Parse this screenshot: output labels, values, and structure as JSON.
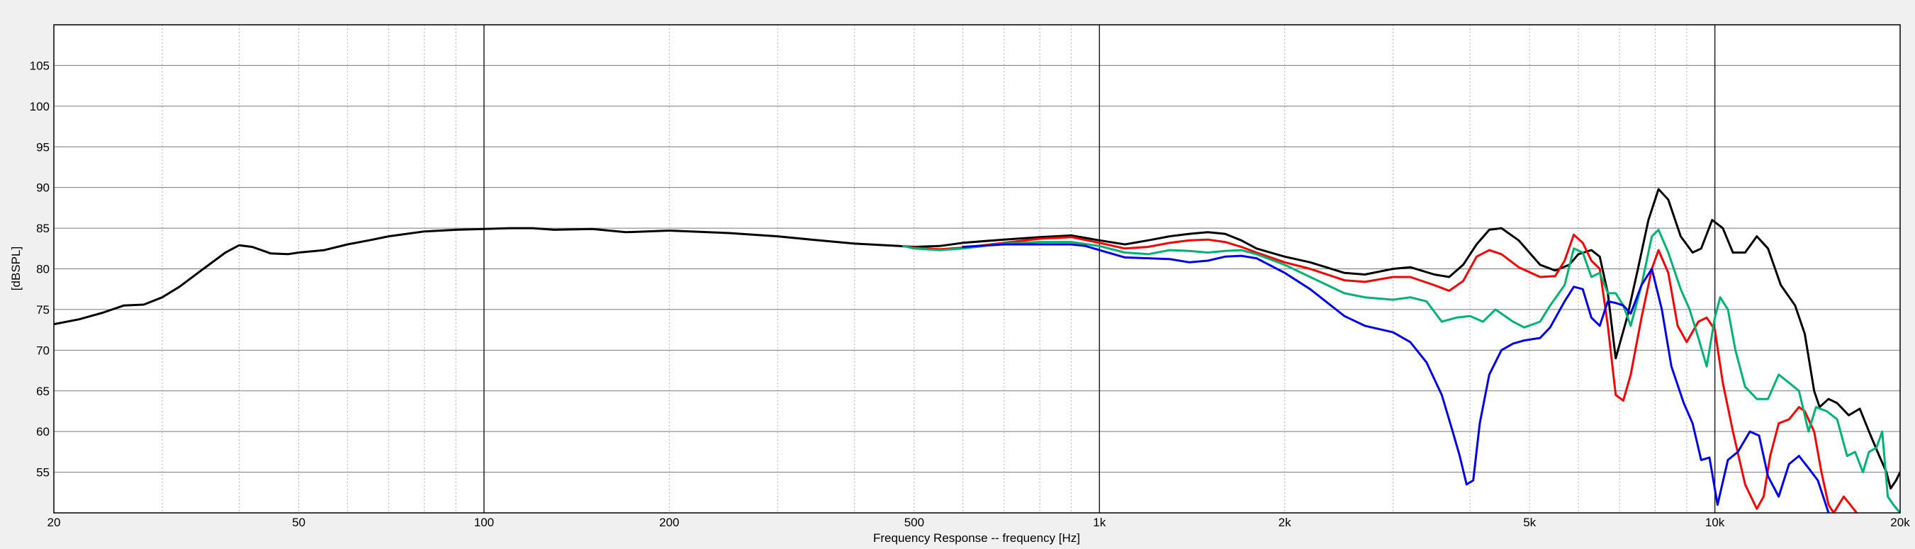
{
  "chart_data": {
    "type": "line",
    "xlabel": "Frequency Response -- frequency [Hz]",
    "ylabel": "[dBSPL]",
    "x_scale": "log",
    "xlim": [
      20,
      20000
    ],
    "ylim": [
      50,
      110
    ],
    "grid": true,
    "x_ticks": [
      20,
      50,
      100,
      200,
      500,
      1000,
      2000,
      5000,
      10000,
      20000
    ],
    "x_tick_labels": [
      "20",
      "50",
      "100",
      "200",
      "500",
      "1k",
      "2k",
      "5k",
      "10k",
      "20k"
    ],
    "y_ticks": [
      55,
      60,
      65,
      70,
      75,
      80,
      85,
      90,
      95,
      100,
      105
    ],
    "y_tick_labels": [
      "55",
      "60",
      "65",
      "70",
      "75",
      "80",
      "85",
      "90",
      "95",
      "100",
      "105"
    ],
    "series": [
      {
        "color": "#000000",
        "points": [
          [
            20,
            73.2
          ],
          [
            22,
            73.8
          ],
          [
            24,
            74.6
          ],
          [
            26,
            75.5
          ],
          [
            28,
            75.6
          ],
          [
            30,
            76.5
          ],
          [
            32,
            77.8
          ],
          [
            35,
            80
          ],
          [
            38,
            82
          ],
          [
            40,
            82.9
          ],
          [
            42,
            82.7
          ],
          [
            45,
            81.9
          ],
          [
            48,
            81.8
          ],
          [
            50,
            82
          ],
          [
            55,
            82.3
          ],
          [
            60,
            83
          ],
          [
            65,
            83.5
          ],
          [
            70,
            84
          ],
          [
            80,
            84.6
          ],
          [
            90,
            84.8
          ],
          [
            100,
            84.9
          ],
          [
            110,
            85
          ],
          [
            120,
            85
          ],
          [
            130,
            84.8
          ],
          [
            150,
            84.9
          ],
          [
            170,
            84.5
          ],
          [
            200,
            84.7
          ],
          [
            250,
            84.4
          ],
          [
            300,
            84
          ],
          [
            350,
            83.5
          ],
          [
            400,
            83.1
          ],
          [
            450,
            82.9
          ],
          [
            500,
            82.7
          ],
          [
            550,
            82.8
          ],
          [
            600,
            83.2
          ],
          [
            700,
            83.6
          ],
          [
            800,
            83.9
          ],
          [
            900,
            84.1
          ],
          [
            1000,
            83.5
          ],
          [
            1100,
            83
          ],
          [
            1200,
            83.5
          ],
          [
            1300,
            84
          ],
          [
            1400,
            84.3
          ],
          [
            1500,
            84.5
          ],
          [
            1600,
            84.3
          ],
          [
            1700,
            83.5
          ],
          [
            1800,
            82.5
          ],
          [
            2000,
            81.5
          ],
          [
            2200,
            80.8
          ],
          [
            2500,
            79.5
          ],
          [
            2700,
            79.3
          ],
          [
            3000,
            80
          ],
          [
            3200,
            80.2
          ],
          [
            3500,
            79.3
          ],
          [
            3700,
            79
          ],
          [
            3900,
            80.5
          ],
          [
            4100,
            83
          ],
          [
            4300,
            84.8
          ],
          [
            4500,
            85
          ],
          [
            4800,
            83.5
          ],
          [
            5200,
            80.5
          ],
          [
            5500,
            79.8
          ],
          [
            5800,
            80.5
          ],
          [
            6000,
            81.8
          ],
          [
            6300,
            82.3
          ],
          [
            6500,
            81.5
          ],
          [
            6700,
            77
          ],
          [
            6900,
            69
          ],
          [
            7200,
            74
          ],
          [
            7500,
            80
          ],
          [
            7800,
            86
          ],
          [
            8100,
            89.8
          ],
          [
            8400,
            88.5
          ],
          [
            8800,
            84
          ],
          [
            9200,
            82
          ],
          [
            9500,
            82.5
          ],
          [
            9900,
            86
          ],
          [
            10300,
            85
          ],
          [
            10700,
            82
          ],
          [
            11200,
            82
          ],
          [
            11700,
            84
          ],
          [
            12200,
            82.5
          ],
          [
            12800,
            78
          ],
          [
            13500,
            75.5
          ],
          [
            14000,
            72
          ],
          [
            14500,
            65
          ],
          [
            14800,
            63
          ],
          [
            15300,
            64
          ],
          [
            15800,
            63.5
          ],
          [
            16500,
            62
          ],
          [
            17200,
            62.8
          ],
          [
            17800,
            60
          ],
          [
            18500,
            57
          ],
          [
            19000,
            55
          ],
          [
            19300,
            53
          ],
          [
            19700,
            54
          ],
          [
            20000,
            55
          ]
        ]
      },
      {
        "color": "#ff0000",
        "points": [
          [
            480,
            82.8
          ],
          [
            500,
            82.6
          ],
          [
            550,
            82.4
          ],
          [
            600,
            82.6
          ],
          [
            700,
            83.2
          ],
          [
            800,
            83.7
          ],
          [
            900,
            83.9
          ],
          [
            1000,
            83.2
          ],
          [
            1100,
            82.5
          ],
          [
            1200,
            82.7
          ],
          [
            1300,
            83.2
          ],
          [
            1400,
            83.5
          ],
          [
            1500,
            83.6
          ],
          [
            1600,
            83.3
          ],
          [
            1700,
            82.7
          ],
          [
            1800,
            82
          ],
          [
            2000,
            80.8
          ],
          [
            2200,
            80
          ],
          [
            2500,
            78.6
          ],
          [
            2700,
            78.4
          ],
          [
            3000,
            79
          ],
          [
            3200,
            79
          ],
          [
            3500,
            78
          ],
          [
            3700,
            77.3
          ],
          [
            3900,
            78.5
          ],
          [
            4100,
            81.5
          ],
          [
            4300,
            82.3
          ],
          [
            4500,
            81.8
          ],
          [
            4800,
            80.2
          ],
          [
            5200,
            79
          ],
          [
            5500,
            79.1
          ],
          [
            5700,
            81
          ],
          [
            5900,
            84.2
          ],
          [
            6100,
            83.2
          ],
          [
            6300,
            81
          ],
          [
            6500,
            80
          ],
          [
            6700,
            73
          ],
          [
            6900,
            64.5
          ],
          [
            7100,
            63.8
          ],
          [
            7300,
            67
          ],
          [
            7600,
            74
          ],
          [
            7900,
            80
          ],
          [
            8100,
            82.3
          ],
          [
            8400,
            79.5
          ],
          [
            8700,
            73
          ],
          [
            9000,
            71
          ],
          [
            9400,
            73.5
          ],
          [
            9700,
            74
          ],
          [
            10000,
            72.5
          ],
          [
            10300,
            66
          ],
          [
            10700,
            60
          ],
          [
            11200,
            53.5
          ],
          [
            11700,
            50.5
          ],
          [
            12000,
            52
          ],
          [
            12300,
            57
          ],
          [
            12700,
            61
          ],
          [
            13200,
            61.5
          ],
          [
            13700,
            63
          ],
          [
            14000,
            62.5
          ],
          [
            14500,
            60
          ],
          [
            14900,
            55
          ],
          [
            15300,
            51
          ],
          [
            15600,
            50
          ],
          [
            16200,
            52
          ],
          [
            16600,
            51
          ],
          [
            17000,
            50
          ]
        ]
      },
      {
        "color": "#00b373",
        "points": [
          [
            480,
            82.8
          ],
          [
            500,
            82.5
          ],
          [
            550,
            82.3
          ],
          [
            600,
            82.5
          ],
          [
            700,
            83.1
          ],
          [
            800,
            83.3
          ],
          [
            900,
            83.3
          ],
          [
            1000,
            82.8
          ],
          [
            1100,
            82
          ],
          [
            1200,
            81.8
          ],
          [
            1300,
            82.3
          ],
          [
            1400,
            82.2
          ],
          [
            1500,
            82
          ],
          [
            1600,
            82.2
          ],
          [
            1700,
            82.3
          ],
          [
            1800,
            81.8
          ],
          [
            2000,
            80.5
          ],
          [
            2200,
            79
          ],
          [
            2500,
            77
          ],
          [
            2700,
            76.5
          ],
          [
            3000,
            76.2
          ],
          [
            3200,
            76.5
          ],
          [
            3400,
            76
          ],
          [
            3600,
            73.5
          ],
          [
            3800,
            74
          ],
          [
            4000,
            74.2
          ],
          [
            4200,
            73.5
          ],
          [
            4400,
            75
          ],
          [
            4700,
            73.5
          ],
          [
            4900,
            72.8
          ],
          [
            5200,
            73.5
          ],
          [
            5400,
            75.5
          ],
          [
            5700,
            78
          ],
          [
            5900,
            82.5
          ],
          [
            6100,
            82
          ],
          [
            6300,
            79
          ],
          [
            6500,
            79.5
          ],
          [
            6700,
            77
          ],
          [
            6900,
            77
          ],
          [
            7100,
            75.5
          ],
          [
            7300,
            73
          ],
          [
            7600,
            78
          ],
          [
            7900,
            84
          ],
          [
            8100,
            84.8
          ],
          [
            8400,
            82
          ],
          [
            8800,
            77.5
          ],
          [
            9100,
            75
          ],
          [
            9400,
            71.5
          ],
          [
            9700,
            68
          ],
          [
            10000,
            74
          ],
          [
            10200,
            76.5
          ],
          [
            10500,
            75
          ],
          [
            10800,
            70
          ],
          [
            11200,
            65.5
          ],
          [
            11700,
            64
          ],
          [
            12200,
            64
          ],
          [
            12700,
            67
          ],
          [
            13200,
            66
          ],
          [
            13700,
            65
          ],
          [
            14200,
            60
          ],
          [
            14600,
            63
          ],
          [
            15200,
            62.5
          ],
          [
            15800,
            61.5
          ],
          [
            16400,
            57
          ],
          [
            16900,
            57.5
          ],
          [
            17400,
            55
          ],
          [
            17800,
            57.5
          ],
          [
            18300,
            58
          ],
          [
            18700,
            60
          ],
          [
            19100,
            52
          ],
          [
            19500,
            51
          ],
          [
            20000,
            50
          ]
        ]
      },
      {
        "color": "#0000ee",
        "points": [
          [
            600,
            82.7
          ],
          [
            700,
            83
          ],
          [
            800,
            83
          ],
          [
            900,
            83
          ],
          [
            950,
            82.8
          ],
          [
            1000,
            82.3
          ],
          [
            1100,
            81.4
          ],
          [
            1200,
            81.3
          ],
          [
            1300,
            81.2
          ],
          [
            1400,
            80.8
          ],
          [
            1500,
            81
          ],
          [
            1600,
            81.5
          ],
          [
            1700,
            81.6
          ],
          [
            1800,
            81.3
          ],
          [
            2000,
            79.5
          ],
          [
            2200,
            77.5
          ],
          [
            2500,
            74.2
          ],
          [
            2700,
            73
          ],
          [
            3000,
            72.2
          ],
          [
            3200,
            71
          ],
          [
            3400,
            68.5
          ],
          [
            3600,
            64.5
          ],
          [
            3750,
            60
          ],
          [
            3850,
            57
          ],
          [
            3950,
            53.5
          ],
          [
            4050,
            54
          ],
          [
            4150,
            61
          ],
          [
            4300,
            67
          ],
          [
            4500,
            70
          ],
          [
            4700,
            70.8
          ],
          [
            4900,
            71.2
          ],
          [
            5200,
            71.5
          ],
          [
            5400,
            72.8
          ],
          [
            5700,
            76
          ],
          [
            5900,
            77.8
          ],
          [
            6100,
            77.5
          ],
          [
            6300,
            74
          ],
          [
            6500,
            73
          ],
          [
            6700,
            76
          ],
          [
            6900,
            75.8
          ],
          [
            7100,
            75.5
          ],
          [
            7300,
            74.5
          ],
          [
            7600,
            78
          ],
          [
            7900,
            80
          ],
          [
            8200,
            75
          ],
          [
            8500,
            68
          ],
          [
            8900,
            63.5
          ],
          [
            9200,
            61
          ],
          [
            9500,
            56.5
          ],
          [
            9800,
            56.8
          ],
          [
            10100,
            51
          ],
          [
            10500,
            56.5
          ],
          [
            10900,
            57.5
          ],
          [
            11400,
            60
          ],
          [
            11800,
            59.5
          ],
          [
            12200,
            54.5
          ],
          [
            12700,
            52
          ],
          [
            13200,
            56
          ],
          [
            13700,
            57
          ],
          [
            14200,
            55.5
          ],
          [
            14700,
            54
          ],
          [
            15000,
            52
          ],
          [
            15300,
            50
          ]
        ]
      }
    ]
  }
}
